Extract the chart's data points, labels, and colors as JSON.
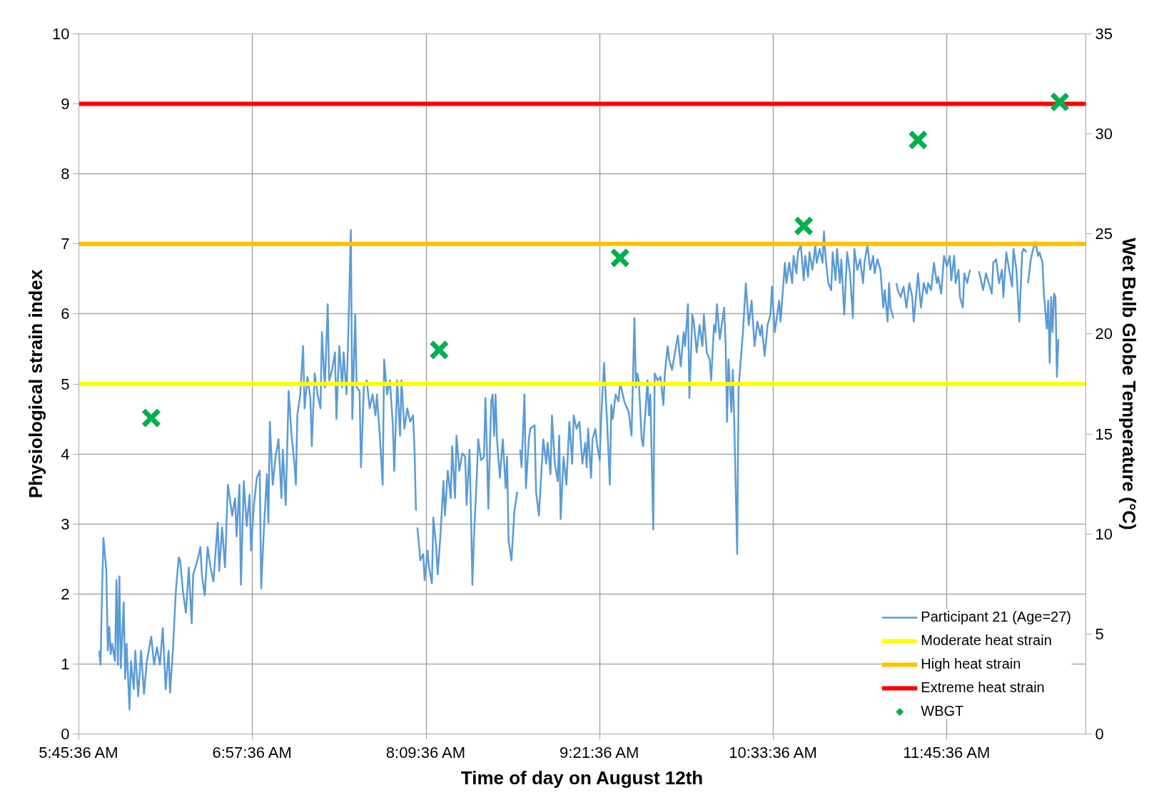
{
  "chart_data": {
    "type": "line",
    "xlabel": "Time of day on August 12th",
    "ylabel": "Physiological strain index",
    "y2label": "Wet Bulb Globe Temperature (°C)",
    "xlim": [
      5.76,
      12.72
    ],
    "ylim": [
      0,
      10
    ],
    "y2lim": [
      0,
      35
    ],
    "xticks": [
      {
        "value": 5.76,
        "label": "5:45:36 AM"
      },
      {
        "value": 6.96,
        "label": "6:57:36 AM"
      },
      {
        "value": 8.16,
        "label": "8:09:36 AM"
      },
      {
        "value": 9.36,
        "label": "9:21:36 AM"
      },
      {
        "value": 10.56,
        "label": "10:33:36 AM"
      },
      {
        "value": 11.76,
        "label": "11:45:36 AM"
      }
    ],
    "yticks": [
      0,
      1,
      2,
      3,
      4,
      5,
      6,
      7,
      8,
      9,
      10
    ],
    "y2ticks": [
      0,
      5,
      10,
      15,
      20,
      25,
      30,
      35
    ],
    "grid": true,
    "legend": "bottom right",
    "series": [
      {
        "name": "Participant 21 (Age=27)",
        "color": "#5b9bd5",
        "x": [
          5.9,
          5.91,
          5.92,
          5.93,
          5.95,
          5.96,
          5.97,
          5.98,
          5.99,
          6.01,
          6.02,
          6.03,
          6.04,
          6.05,
          6.07,
          6.08,
          6.09,
          6.11,
          6.12,
          6.14,
          6.15,
          6.17,
          6.19,
          6.21,
          6.23,
          6.26,
          6.28,
          6.3,
          6.32,
          6.34,
          6.36,
          6.38,
          6.39,
          6.41,
          6.43,
          6.45,
          6.46,
          6.48,
          6.5,
          6.52,
          6.54,
          6.55,
          6.58,
          6.6,
          6.61,
          6.63,
          6.65,
          6.67,
          6.69,
          6.72,
          6.73,
          6.75,
          6.77,
          6.79,
          6.82,
          6.84,
          6.85,
          6.87,
          6.88,
          6.9,
          6.92,
          6.94,
          6.95,
          6.97,
          6.99,
          7.01,
          7.02,
          7.04,
          7.06,
          7.07,
          7.08,
          7.1,
          7.12,
          7.14,
          7.16,
          7.17,
          7.19,
          7.21,
          7.23,
          7.25,
          7.26,
          7.27,
          7.29,
          7.31,
          7.32,
          7.34,
          7.36,
          7.37,
          7.39,
          7.41,
          7.43,
          7.44,
          7.46,
          7.47,
          7.48,
          7.49,
          7.51,
          7.53,
          7.54,
          7.56,
          7.58,
          7.59,
          7.61,
          7.62,
          7.64,
          7.65,
          7.67,
          7.68,
          7.7,
          7.71,
          7.73,
          7.75,
          7.77,
          7.79,
          7.81,
          7.82,
          7.84,
          7.86,
          7.87,
          7.89,
          7.91,
          7.93,
          7.94,
          7.96,
          7.98,
          7.99,
          8.01,
          8.03,
          8.05,
          8.07,
          8.08,
          8.09,
          8.095,
          8.1,
          8.12,
          8.14,
          8.15,
          8.17,
          8.18,
          8.2,
          8.21,
          8.23,
          8.24,
          8.26,
          8.28,
          8.29,
          8.31,
          8.33,
          8.34,
          8.36,
          8.37,
          8.39,
          8.41,
          8.43,
          8.44,
          8.46,
          8.47,
          8.48,
          8.49,
          8.51,
          8.52,
          8.54,
          8.56,
          8.57,
          8.58,
          8.59,
          8.61,
          8.62,
          8.63,
          8.64,
          8.65,
          8.67,
          8.69,
          8.71,
          8.72,
          8.73,
          8.75,
          8.77,
          8.79,
          8.8,
          8.81,
          8.82,
          8.84,
          8.85,
          8.87,
          8.88,
          8.91,
          8.92,
          8.94,
          8.96,
          8.97,
          8.99,
          9.0,
          9.02,
          9.03,
          9.05,
          9.07,
          9.08,
          9.09,
          9.11,
          9.13,
          9.15,
          9.17,
          9.18,
          9.2,
          9.22,
          9.24,
          9.26,
          9.27,
          9.28,
          9.3,
          9.31,
          9.33,
          9.34,
          9.36,
          9.37,
          9.39,
          9.41,
          9.43,
          9.44,
          9.45,
          9.47,
          9.49,
          9.5,
          9.53,
          9.54,
          9.56,
          9.58,
          9.6,
          9.61,
          9.62,
          9.63,
          9.65,
          9.66,
          9.69,
          9.7,
          9.71,
          9.73,
          9.74,
          9.76,
          9.78,
          9.8,
          9.81,
          9.83,
          9.84,
          9.86,
          9.88,
          9.9,
          9.92,
          9.94,
          9.95,
          9.97,
          9.98,
          10.0,
          10.01,
          10.03,
          10.05,
          10.07,
          10.08,
          10.1,
          10.12,
          10.13,
          10.15,
          10.16,
          10.17,
          10.19,
          10.2,
          10.22,
          10.23,
          10.24,
          10.25,
          10.27,
          10.28,
          10.29,
          10.31,
          10.32,
          10.35,
          10.37,
          10.39,
          10.41,
          10.43,
          10.45,
          10.47,
          10.48,
          10.5,
          10.52,
          10.54,
          10.55,
          10.57,
          10.6,
          10.61,
          10.64,
          10.65,
          10.67,
          10.69,
          10.7,
          10.72,
          10.73,
          10.75,
          10.77,
          10.78,
          10.8,
          10.81,
          10.83,
          10.85,
          10.86,
          10.88,
          10.9,
          10.91,
          10.92,
          10.94,
          10.96,
          10.97,
          10.99,
          11.0,
          11.02,
          11.03,
          11.05,
          11.07,
          11.09,
          11.11,
          11.12,
          11.14,
          11.16,
          11.18,
          11.19,
          11.21,
          11.23,
          11.25,
          11.26,
          11.28,
          11.3,
          11.32,
          11.33,
          11.35,
          11.36,
          11.37,
          11.39,
          11.4,
          11.41,
          11.42,
          11.44,
          11.46,
          11.48,
          11.5,
          11.52,
          11.53,
          11.55,
          11.56,
          11.58,
          11.6,
          11.62,
          11.63,
          11.65,
          11.67,
          11.69,
          11.7,
          11.72,
          11.74,
          11.76,
          11.78,
          11.79,
          11.81,
          11.82,
          11.84,
          11.85,
          11.87,
          11.88,
          11.9,
          11.91,
          11.92,
          11.95,
          11.98,
          11.99,
          12.01,
          12.03,
          12.05,
          12.07,
          12.08,
          12.1,
          12.12,
          12.14,
          12.15,
          12.17,
          12.19,
          12.21,
          12.22,
          12.24,
          12.26,
          12.28,
          12.29,
          12.31,
          12.315,
          12.32,
          12.34,
          12.35,
          12.37,
          12.39,
          12.4,
          12.42,
          12.43,
          12.45,
          12.46,
          12.47,
          12.48,
          12.49,
          12.5,
          12.51,
          12.52,
          12.53
        ],
        "values": [
          1.19,
          0.99,
          2.03,
          2.8,
          2.33,
          1.19,
          1.53,
          1.14,
          1.29,
          1.04,
          2.2,
          0.99,
          2.25,
          0.94,
          1.88,
          0.79,
          1.29,
          0.35,
          1.04,
          0.64,
          1.19,
          0.54,
          1.19,
          0.57,
          1.04,
          1.39,
          0.99,
          1.24,
          0.99,
          1.51,
          0.64,
          1.19,
          0.59,
          1.19,
          2.03,
          2.52,
          2.48,
          2.03,
          1.73,
          2.38,
          1.58,
          2.28,
          2.48,
          2.67,
          2.28,
          1.98,
          2.67,
          2.38,
          2.18,
          3.02,
          2.33,
          2.95,
          2.38,
          3.56,
          3.12,
          3.37,
          2.82,
          3.56,
          2.13,
          3.61,
          2.97,
          3.42,
          2.62,
          3.27,
          3.66,
          3.76,
          2.08,
          2.97,
          3.71,
          3.02,
          4.46,
          3.56,
          3.96,
          4.21,
          3.37,
          4.06,
          3.27,
          4.9,
          4.26,
          3.86,
          3.56,
          4.55,
          4.85,
          5.54,
          4.65,
          5.1,
          4.8,
          4.11,
          5.15,
          4.85,
          4.65,
          5.74,
          4.95,
          5.54,
          6.14,
          5.05,
          5.2,
          5.45,
          4.5,
          5.54,
          4.95,
          5.45,
          4.85,
          5.54,
          7.2,
          4.5,
          5.99,
          4.95,
          4.9,
          3.81,
          4.95,
          5.05,
          4.65,
          4.85,
          4.55,
          4.85,
          4.26,
          3.56,
          5.35,
          4.85,
          5.05,
          4.41,
          3.76,
          5.05,
          4.26,
          5.05,
          4.36,
          4.65,
          4.46,
          4.55,
          4.06,
          3.19,
          null,
          2.95,
          2.48,
          2.57,
          2.2,
          2.62,
          2.38,
          2.15,
          3.09,
          2.67,
          2.28,
          2.87,
          3.61,
          3.12,
          3.76,
          3.37,
          4.11,
          3.37,
          4.26,
          3.76,
          4.01,
          3.96,
          3.27,
          4.06,
          3.17,
          2.13,
          2.77,
          3.66,
          4.21,
          3.91,
          3.96,
          4.8,
          4.11,
          3.22,
          4.75,
          4.85,
          4.26,
          4.85,
          4.21,
          3.66,
          4.21,
          3.51,
          3.96,
          2.77,
          2.48,
          3.17,
          3.46,
          null,
          4.06,
          3.81,
          4.85,
          3.51,
          4.21,
          4.36,
          4.41,
          3.46,
          3.12,
          3.86,
          4.21,
          3.86,
          4.16,
          3.71,
          4.55,
          3.86,
          3.61,
          4.26,
          3.07,
          3.96,
          3.56,
          4.46,
          3.86,
          4.55,
          4.36,
          4.46,
          3.86,
          4.16,
          3.81,
          4.36,
          3.66,
          4.21,
          4.36,
          4.16,
          3.91,
          4.5,
          5.3,
          4.5,
          3.56,
          4.7,
          4.5,
          4.85,
          4.75,
          5.02,
          4.75,
          4.7,
          4.6,
          4.26,
          5.94,
          4.95,
          5.15,
          5.05,
          4.21,
          4.11,
          5.05,
          4.55,
          4.85,
          2.92,
          5.15,
          5.05,
          5.1,
          4.7,
          5.15,
          5.54,
          5.35,
          5.2,
          5.45,
          5.69,
          5.25,
          5.74,
          5.54,
          6.14,
          4.8,
          5.99,
          5.89,
          5.45,
          5.84,
          5.54,
          5.99,
          5.45,
          5.35,
          5.05,
          5.84,
          5.74,
          6.14,
          5.64,
          5.79,
          6.09,
          5.59,
          4.46,
          5.35,
          4.6,
          5.2,
          4.46,
          2.57,
          4.95,
          5.74,
          6.44,
          5.84,
          6.19,
          5.54,
          5.89,
          5.69,
          5.84,
          5.4,
          5.84,
          5.99,
          6.39,
          5.74,
          6.19,
          5.89,
          6.73,
          6.44,
          6.73,
          6.44,
          6.83,
          6.58,
          6.88,
          6.98,
          6.48,
          6.83,
          6.53,
          6.88,
          6.63,
          6.98,
          6.73,
          6.93,
          6.73,
          7.18,
          6.83,
          6.44,
          6.34,
          6.88,
          6.48,
          6.93,
          6.44,
          6.78,
          5.99,
          6.88,
          6.58,
          5.94,
          6.93,
          6.63,
          6.78,
          6.44,
          6.73,
          6.98,
          6.63,
          6.83,
          6.58,
          6.78,
          6.63,
          6.09,
          6.34,
          5.89,
          6.44,
          6.09,
          5.94,
          null,
          6.44,
          6.34,
          6.24,
          6.39,
          6.09,
          6.44,
          6.24,
          5.89,
          6.34,
          6.58,
          6.09,
          6.44,
          6.29,
          6.44,
          6.34,
          6.73,
          6.44,
          6.53,
          6.29,
          6.83,
          6.68,
          6.83,
          6.48,
          6.83,
          6.44,
          6.63,
          6.24,
          6.09,
          6.58,
          6.44,
          6.55,
          6.63,
          null,
          6.61,
          6.53,
          6.34,
          6.58,
          6.44,
          6.29,
          6.73,
          6.78,
          6.44,
          6.63,
          6.24,
          6.88,
          6.63,
          6.39,
          6.93,
          6.63,
          5.89,
          6.88,
          6.93,
          6.88,
          null,
          6.44,
          6.78,
          6.88,
          7.03,
          6.83,
          6.88,
          6.73,
          6.29,
          5.79,
          6.19,
          5.3,
          6.24,
          5.74,
          6.29,
          6.24,
          5.1,
          5.64
        ]
      },
      {
        "name": "Moderate heat strain",
        "color": "#ffff00",
        "x": [
          5.76,
          12.72
        ],
        "values": [
          5,
          5
        ]
      },
      {
        "name": "High heat strain",
        "color": "#ffc000",
        "x": [
          5.76,
          12.72
        ],
        "values": [
          7,
          7
        ]
      },
      {
        "name": "Extreme heat strain",
        "color": "#ff0000",
        "x": [
          5.76,
          12.72
        ],
        "values": [
          9,
          9
        ]
      },
      {
        "name": "WBGT",
        "type": "scatter",
        "axis": "y2",
        "marker": "cross",
        "color": "#00b050",
        "x": [
          6.26,
          8.25,
          9.5,
          10.77,
          11.56,
          12.54
        ],
        "values": [
          15.8,
          19.2,
          23.8,
          25.4,
          29.7,
          31.6
        ]
      }
    ]
  }
}
